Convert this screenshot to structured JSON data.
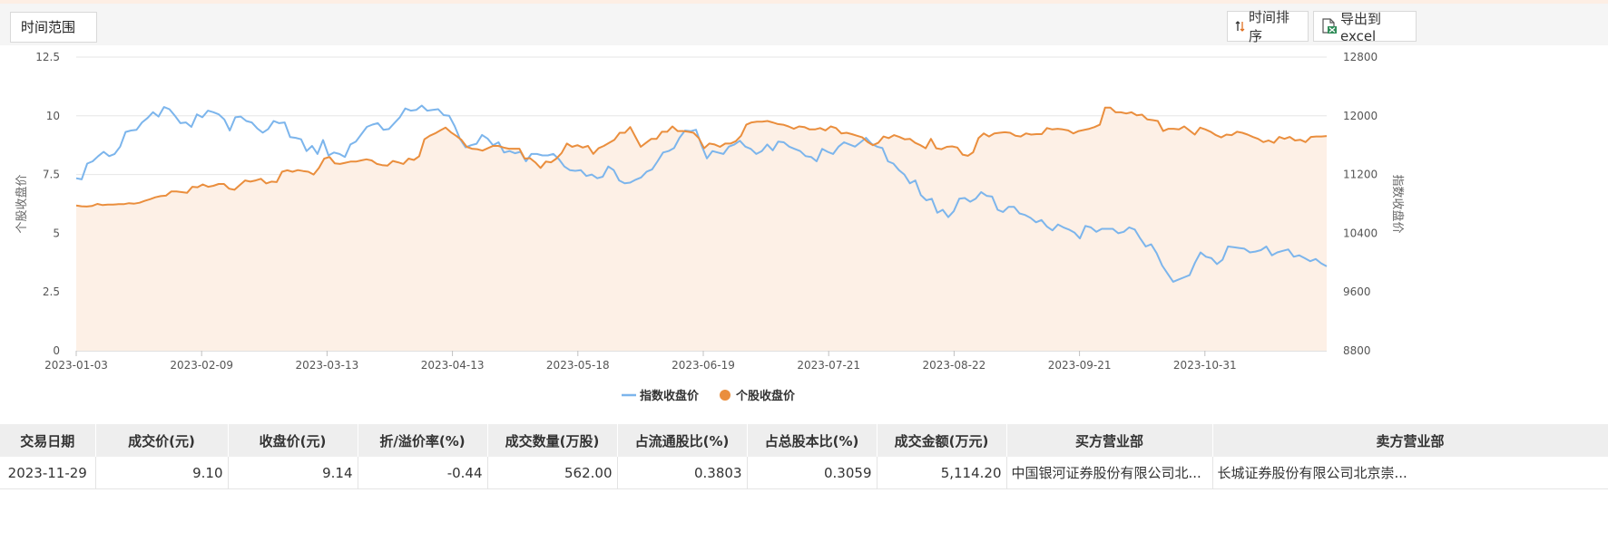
{
  "toolbar": {
    "range_label": "时间范围",
    "sort_label": "时间排序",
    "export_label": "导出到excel"
  },
  "chart_data": {
    "type": "line",
    "x_tick_labels": [
      "2023-01-03",
      "2023-02-09",
      "2023-03-13",
      "2023-04-13",
      "2023-05-18",
      "2023-06-19",
      "2023-07-21",
      "2023-08-22",
      "2023-09-21",
      "2023-10-31"
    ],
    "left_axis": {
      "label": "个股收盘价",
      "range": [
        0,
        12.5
      ],
      "ticks": [
        "0",
        "2.5",
        "5",
        "7.5",
        "10",
        "12.5"
      ]
    },
    "right_axis": {
      "label": "指数收盘价",
      "range": [
        8800,
        12800
      ],
      "ticks": [
        "8800",
        "9600",
        "10400",
        "11200",
        "12000",
        "12800"
      ]
    },
    "legend_position": "bottom-center",
    "colors": {
      "index": "#7cb5ec",
      "stock": "#ea8e3d",
      "stock_fill": "#fdf0e6"
    },
    "series": [
      {
        "name": "指数收盘价",
        "axis": "right",
        "values": [
          11150,
          11135,
          11350,
          11380,
          11450,
          11510,
          11450,
          11480,
          11580,
          11780,
          11800,
          11810,
          11910,
          11970,
          12050,
          11990,
          12120,
          12090,
          12000,
          11900,
          11910,
          11850,
          12020,
          11980,
          12070,
          12050,
          12020,
          11950,
          11800,
          11980,
          11990,
          11930,
          11910,
          11830,
          11770,
          11820,
          11930,
          11900,
          11910,
          11710,
          11700,
          11680,
          11520,
          11590,
          11480,
          11670,
          11460,
          11500,
          11480,
          11440,
          11610,
          11650,
          11750,
          11850,
          11880,
          11900,
          11810,
          11820,
          11900,
          11980,
          12100,
          12070,
          12080,
          12140,
          12070,
          12080,
          12090,
          12010,
          12000,
          11860,
          11680,
          11570,
          11600,
          11620,
          11740,
          11690,
          11600,
          11640,
          11500,
          11520,
          11490,
          11510,
          11380,
          11480,
          11480,
          11460,
          11460,
          11480,
          11410,
          11310,
          11260,
          11250,
          11260,
          11180,
          11200,
          11150,
          11170,
          11310,
          11260,
          11120,
          11080,
          11090,
          11130,
          11160,
          11240,
          11270,
          11380,
          11500,
          11520,
          11560,
          11700,
          11800,
          11790,
          11810,
          11600,
          11420,
          11520,
          11500,
          11480,
          11580,
          11610,
          11660,
          11580,
          11550,
          11480,
          11520,
          11610,
          11530,
          11650,
          11640,
          11580,
          11550,
          11520,
          11450,
          11440,
          11380,
          11550,
          11510,
          11480,
          11580,
          11640,
          11610,
          11580,
          11640,
          11700,
          11620,
          11580,
          11560,
          11380,
          11350,
          11260,
          11200,
          11080,
          11120,
          10920,
          10850,
          10870,
          10680,
          10720,
          10620,
          10700,
          10870,
          10880,
          10830,
          10870,
          10960,
          10910,
          10900,
          10720,
          10690,
          10760,
          10760,
          10670,
          10650,
          10610,
          10550,
          10580,
          10490,
          10440,
          10520,
          10480,
          10450,
          10410,
          10330,
          10500,
          10480,
          10420,
          10460,
          10460,
          10460,
          10400,
          10420,
          10480,
          10450,
          10330,
          10220,
          10250,
          10130,
          9960,
          9850,
          9740,
          9770,
          9800,
          9830,
          10000,
          10140,
          10080,
          10060,
          9980,
          10040,
          10220,
          10210,
          10200,
          10190,
          10140,
          10150,
          10170,
          10220,
          10100,
          10140,
          10160,
          10180,
          10080,
          10100,
          10060,
          10020,
          10050,
          9990,
          9950
        ]
      },
      {
        "name": "个股收盘价",
        "axis": "left",
        "values": [
          6.18,
          6.15,
          6.14,
          6.16,
          6.25,
          6.2,
          6.22,
          6.22,
          6.24,
          6.24,
          6.28,
          6.26,
          6.3,
          6.38,
          6.45,
          6.53,
          6.58,
          6.6,
          6.78,
          6.78,
          6.75,
          6.72,
          6.98,
          6.96,
          7.08,
          6.98,
          7.02,
          7.1,
          7.1,
          6.9,
          6.85,
          7.05,
          7.25,
          7.2,
          7.25,
          7.32,
          7.12,
          7.2,
          7.18,
          7.62,
          7.68,
          7.62,
          7.69,
          7.65,
          7.62,
          7.5,
          7.78,
          8.18,
          8.25,
          7.98,
          7.95,
          8.0,
          8.05,
          8.05,
          8.1,
          8.15,
          8.1,
          7.95,
          7.9,
          7.88,
          8.08,
          8.02,
          7.95,
          8.18,
          8.12,
          8.28,
          9.0,
          9.15,
          9.25,
          9.38,
          9.5,
          9.3,
          9.15,
          8.98,
          8.68,
          8.6,
          8.58,
          8.52,
          8.62,
          8.72,
          8.72,
          8.65,
          8.6,
          8.6,
          8.6,
          8.18,
          8.2,
          8.02,
          7.78,
          8.05,
          8.02,
          8.18,
          8.42,
          8.82,
          8.68,
          8.75,
          8.65,
          8.72,
          8.38,
          8.62,
          8.72,
          8.85,
          8.98,
          9.28,
          9.28,
          9.52,
          9.1,
          8.68,
          8.85,
          9.02,
          9.02,
          9.32,
          9.32,
          9.55,
          9.35,
          9.35,
          9.32,
          9.28,
          9.05,
          8.62,
          8.82,
          8.78,
          8.68,
          8.82,
          8.82,
          8.92,
          9.15,
          9.62,
          9.72,
          9.75,
          9.75,
          9.78,
          9.72,
          9.65,
          9.62,
          9.55,
          9.45,
          9.55,
          9.52,
          9.42,
          9.42,
          9.48,
          9.38,
          9.55,
          9.48,
          9.25,
          9.28,
          9.22,
          9.15,
          9.08,
          8.88,
          8.75,
          8.85,
          9.12,
          9.05,
          9.18,
          9.1,
          9.0,
          9.02,
          8.85,
          8.75,
          8.62,
          9.02,
          8.62,
          8.58,
          8.68,
          8.7,
          8.65,
          8.35,
          8.3,
          8.45,
          9.05,
          9.25,
          9.12,
          9.25,
          9.28,
          9.3,
          9.28,
          9.15,
          9.12,
          9.25,
          9.2,
          9.22,
          9.22,
          9.48,
          9.42,
          9.45,
          9.42,
          9.38,
          9.25,
          9.35,
          9.4,
          9.45,
          9.52,
          9.62,
          10.35,
          10.35,
          10.15,
          10.15,
          10.1,
          10.15,
          10.02,
          10.05,
          9.85,
          9.82,
          9.78,
          9.35,
          9.45,
          9.45,
          9.42,
          9.55,
          9.38,
          9.2,
          9.5,
          9.42,
          9.32,
          9.18,
          9.08,
          9.2,
          9.18,
          9.32,
          9.28,
          9.2,
          9.1,
          9.02,
          8.88,
          8.95,
          8.85,
          9.1,
          9.02,
          9.1,
          8.95,
          8.98,
          8.88,
          9.1,
          9.12,
          9.12,
          9.14
        ]
      }
    ]
  },
  "table": {
    "columns": [
      "交易日期",
      "成交价(元)",
      "收盘价(元)",
      "折/溢价率(%)",
      "成交数量(万股)",
      "占流通股比(%)",
      "占总股本比(%)",
      "成交金额(万元)",
      "买方营业部",
      "卖方营业部"
    ],
    "rows": [
      [
        "2023-11-29",
        "9.10",
        "9.14",
        "-0.44",
        "562.00",
        "0.3803",
        "0.3059",
        "5,114.20",
        "中国银河证券股份有限公司北...",
        "长城证券股份有限公司北京崇..."
      ]
    ]
  }
}
